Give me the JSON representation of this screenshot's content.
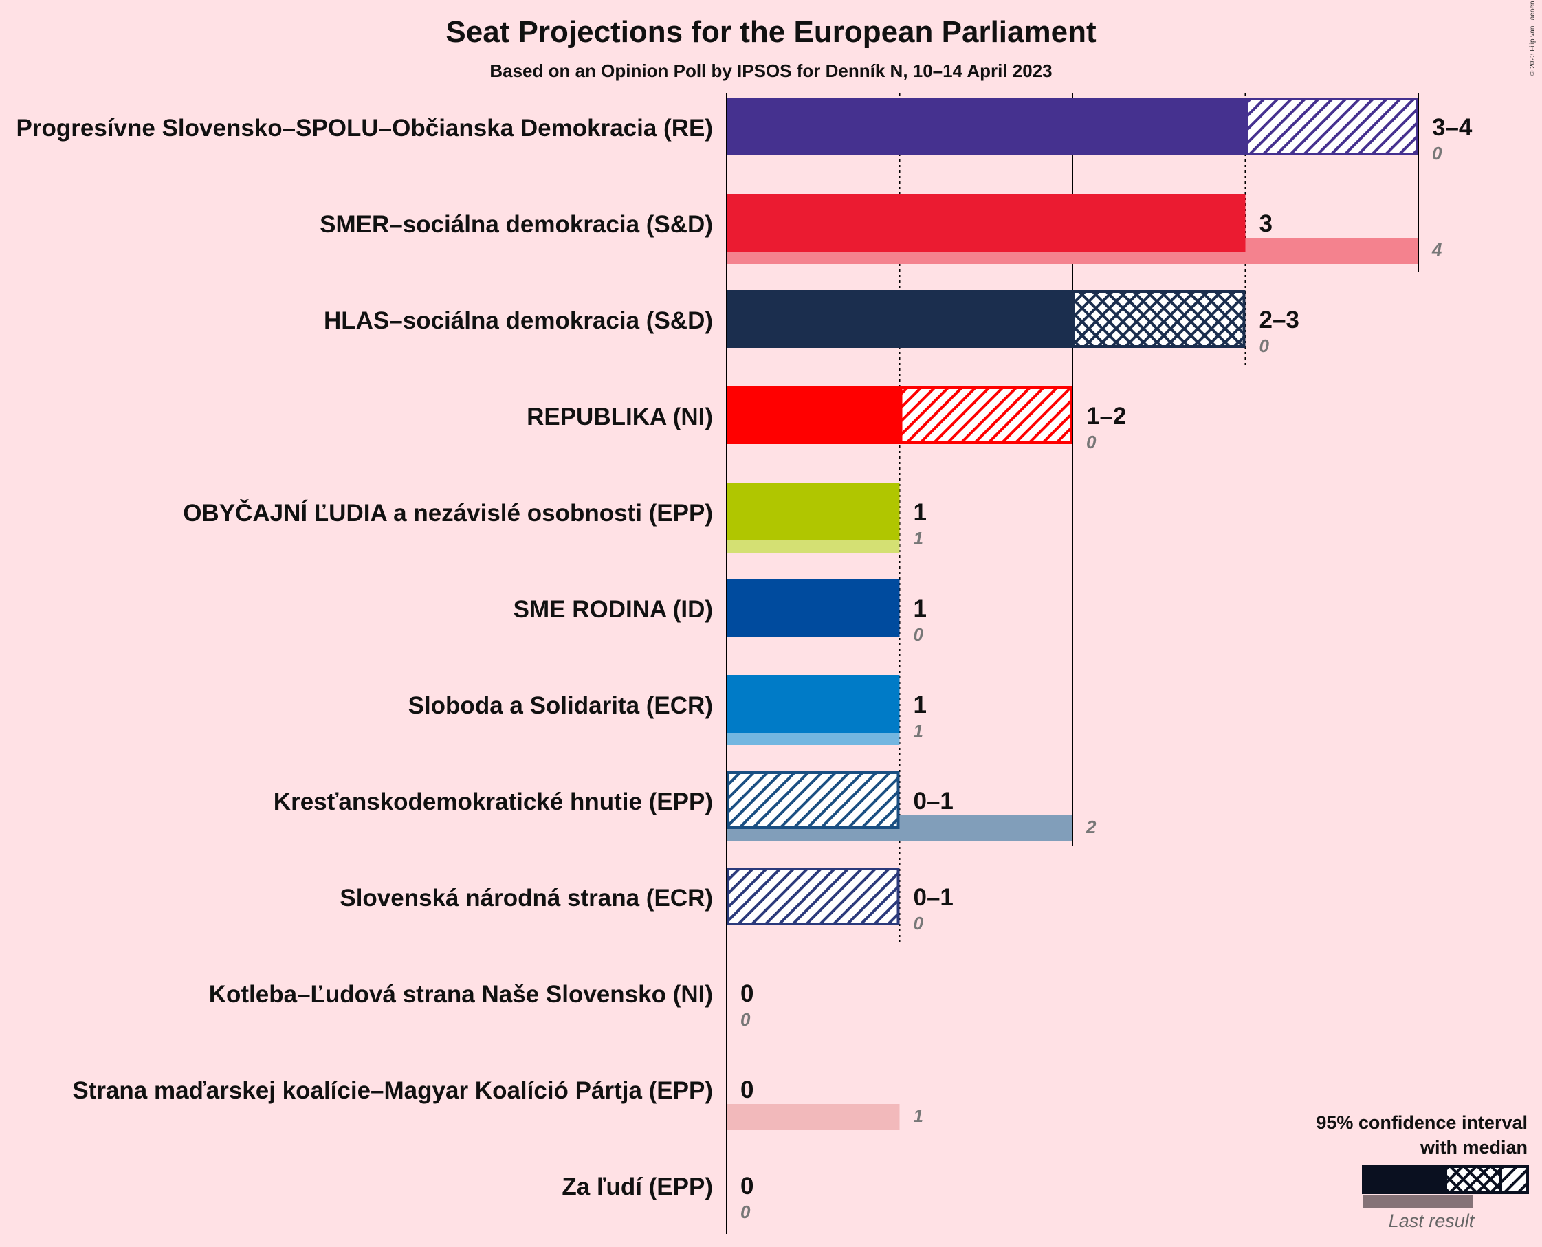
{
  "title": "Seat Projections for the European Parliament",
  "subtitle": "Based on an Opinion Poll by IPSOS for Denník N, 10–14 April 2023",
  "copyright": "© 2023 Filip van Laenen",
  "legend": {
    "line1": "95% confidence interval",
    "line2": "with median",
    "last_result": "Last result"
  },
  "chart_data": {
    "type": "bar",
    "xlim": [
      0,
      4
    ],
    "gridlines": [
      1,
      2,
      3,
      4
    ],
    "series": [
      {
        "party": "Progresívne Slovensko–SPOLU–Občianska Demokracia (RE)",
        "color": "#45318F",
        "low": 3,
        "median": 3,
        "high": 4,
        "range_label": "3–4",
        "last": 0,
        "last_label": "0"
      },
      {
        "party": "SMER–sociálna demokracia (S&D)",
        "color": "#EB1B31",
        "low": 3,
        "median": 3,
        "high": 3,
        "range_label": "3",
        "last": 4,
        "last_label": "4"
      },
      {
        "party": "HLAS–sociálna demokracia (S&D)",
        "color": "#1B2E4E",
        "low": 2,
        "median": 3,
        "high": 3,
        "range_label": "2–3",
        "last": 0,
        "last_label": "0"
      },
      {
        "party": "REPUBLIKA (NI)",
        "color": "#FF0000",
        "low": 1,
        "median": 1,
        "high": 2,
        "range_label": "1–2",
        "last": 0,
        "last_label": "0"
      },
      {
        "party": "OBYČAJNÍ ĽUDIA a nezávislé osobnosti (EPP)",
        "color": "#B0C600",
        "low": 1,
        "median": 1,
        "high": 1,
        "range_label": "1",
        "last": 1,
        "last_label": "1"
      },
      {
        "party": "SME RODINA (ID)",
        "color": "#004B9E",
        "low": 1,
        "median": 1,
        "high": 1,
        "range_label": "1",
        "last": 0,
        "last_label": "0"
      },
      {
        "party": "Sloboda a Solidarita (ECR)",
        "color": "#007BC7",
        "low": 1,
        "median": 1,
        "high": 1,
        "range_label": "1",
        "last": 1,
        "last_label": "1"
      },
      {
        "party": "Kresťanskodemokratické hnutie (EPP)",
        "color": "#1A4F82",
        "low": 0,
        "median": 0,
        "high": 1,
        "range_label": "0–1",
        "last": 2,
        "last_label": "2"
      },
      {
        "party": "Slovenská národná strana (ECR)",
        "color": "#2B3A7B",
        "low": 0,
        "median": 0,
        "high": 1,
        "range_label": "0–1",
        "last": 0,
        "last_label": "0"
      },
      {
        "party": "Kotleba–Ľudová strana Naše Slovensko (NI)",
        "color": "#4A3A2A",
        "low": 0,
        "median": 0,
        "high": 0,
        "range_label": "0",
        "last": 0,
        "last_label": "0"
      },
      {
        "party": "Strana maďarskej koalície–Magyar Koalíció Pártja (EPP)",
        "color": "#E77F83",
        "low": 0,
        "median": 0,
        "high": 0,
        "range_label": "0",
        "last": 1,
        "last_label": "1"
      },
      {
        "party": "Za ľudí (EPP)",
        "color": "#555555",
        "low": 0,
        "median": 0,
        "high": 0,
        "range_label": "0",
        "last": 0,
        "last_label": "0"
      }
    ]
  }
}
